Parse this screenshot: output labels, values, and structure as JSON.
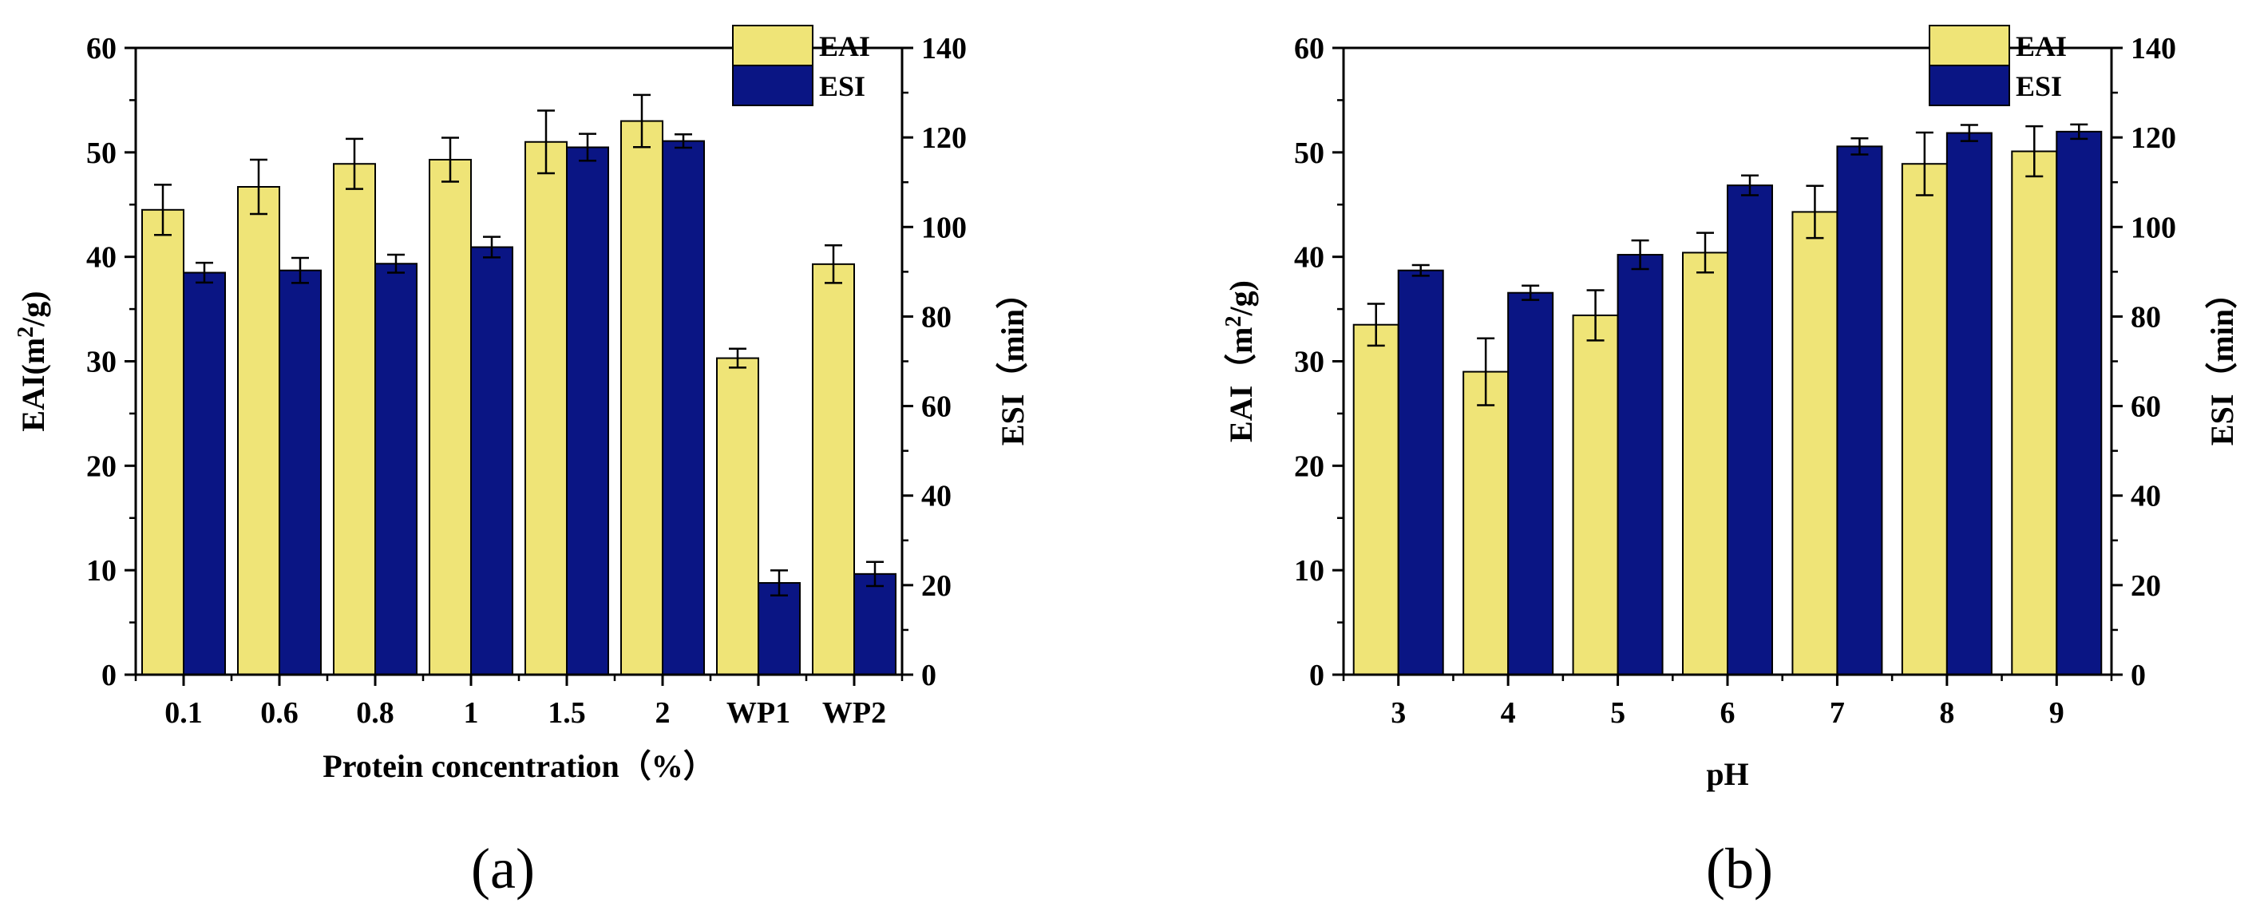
{
  "colors": {
    "eai": "#EFE477",
    "esi": "#0A1584",
    "axis": "#000000"
  },
  "chart_data": [
    {
      "type": "bar",
      "panel_label": "(a)",
      "categories": [
        "0.1",
        "0.6",
        "0.8",
        "1",
        "1.5",
        "2",
        "WP1",
        "WP2"
      ],
      "xlabel": "Protein concentration（%）",
      "ylabel_left": {
        "prefix": "EAI(m",
        "sup": "2",
        "suffix": "/g)"
      },
      "ylabel_right": "ESI（min）",
      "ylim_left": [
        0,
        60
      ],
      "yticks_left": [
        "0",
        "10",
        "20",
        "30",
        "40",
        "50",
        "60"
      ],
      "ylim_right": [
        0,
        140
      ],
      "yticks_right": [
        "0",
        "20",
        "40",
        "60",
        "80",
        "100",
        "120",
        "140"
      ],
      "legend": [
        "EAI",
        "ESI"
      ],
      "legend_position": "top-right",
      "series": [
        {
          "name": "EAI",
          "axis": "left",
          "values": [
            44.5,
            46.7,
            48.9,
            49.3,
            51.0,
            53.0,
            30.3,
            39.3
          ],
          "errors": [
            2.4,
            2.6,
            2.4,
            2.1,
            3.0,
            2.5,
            0.9,
            1.8
          ]
        },
        {
          "name": "ESI",
          "axis": "right",
          "values": [
            89.8,
            90.3,
            91.8,
            95.5,
            117.8,
            119.2,
            20.5,
            22.5
          ],
          "errors": [
            2.2,
            2.8,
            2.0,
            2.3,
            3.0,
            1.5,
            2.8,
            2.7
          ]
        }
      ]
    },
    {
      "type": "bar",
      "panel_label": "(b)",
      "categories": [
        "3",
        "4",
        "5",
        "6",
        "7",
        "8",
        "9"
      ],
      "xlabel": "pH",
      "ylabel_left": {
        "prefix": "EAI（m",
        "sup": "2",
        "suffix": "/g)"
      },
      "ylabel_right": "ESI（min）",
      "ylim_left": [
        0,
        60
      ],
      "yticks_left": [
        "0",
        "10",
        "20",
        "30",
        "40",
        "50",
        "60"
      ],
      "ylim_right": [
        0,
        140
      ],
      "yticks_right": [
        "0",
        "20",
        "40",
        "60",
        "80",
        "100",
        "120",
        "140"
      ],
      "legend": [
        "EAI",
        "ESI"
      ],
      "legend_position": "top-right",
      "series": [
        {
          "name": "EAI",
          "axis": "left",
          "values": [
            33.5,
            29.0,
            34.4,
            40.4,
            44.3,
            48.9,
            50.1
          ],
          "errors": [
            2.0,
            3.2,
            2.4,
            1.9,
            2.5,
            3.0,
            2.4
          ]
        },
        {
          "name": "ESI",
          "axis": "right",
          "values": [
            90.3,
            85.3,
            93.8,
            109.3,
            118.0,
            121.0,
            121.3
          ],
          "errors": [
            1.2,
            1.6,
            3.2,
            2.2,
            1.8,
            1.8,
            1.6
          ]
        }
      ]
    }
  ]
}
